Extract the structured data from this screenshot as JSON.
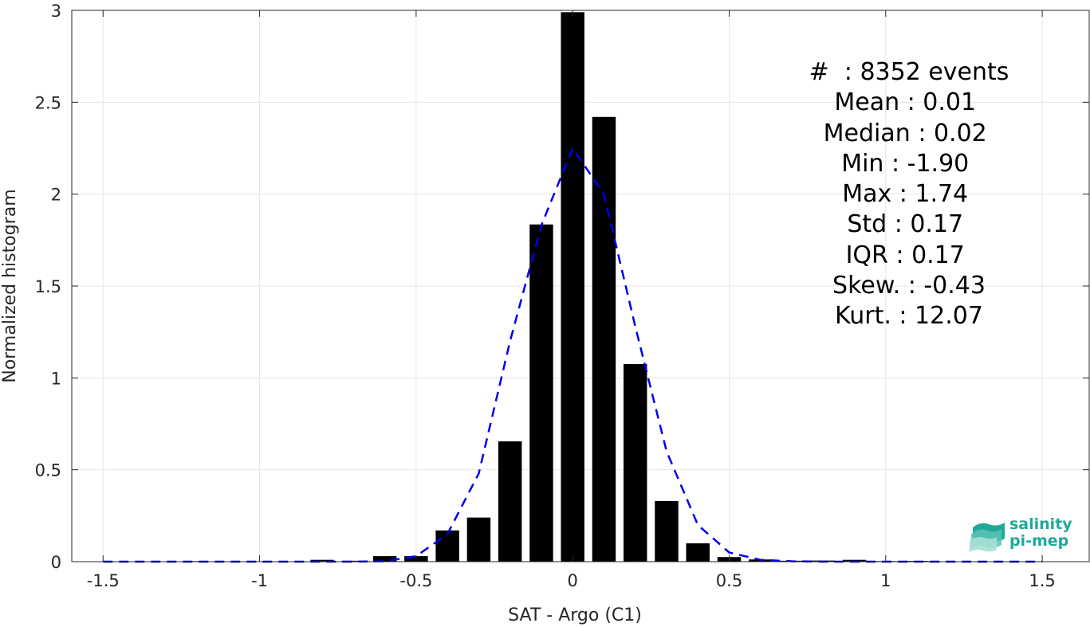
{
  "chart_data": {
    "type": "bar",
    "xlabel": "SAT - Argo (C1)",
    "ylabel": "Normalized histogram",
    "xlim": [
      -1.6,
      1.65
    ],
    "ylim": [
      0,
      3
    ],
    "xticks": [
      -1.5,
      -1,
      -0.5,
      0,
      0.5,
      1,
      1.5
    ],
    "xtick_labels": [
      "-1.5",
      "-1",
      "-0.5",
      "0",
      "0.5",
      "1",
      "1.5"
    ],
    "yticks": [
      0,
      0.5,
      1,
      1.5,
      2,
      2.5,
      3
    ],
    "ytick_labels": [
      "0",
      "0.5",
      "1",
      "1.5",
      "2",
      "2.5",
      "3"
    ],
    "grid": true,
    "bar_color": "#000000",
    "bars": {
      "x": [
        -1.5,
        -1.4,
        -1.3,
        -1.2,
        -1.1,
        -1.0,
        -0.9,
        -0.8,
        -0.7,
        -0.6,
        -0.5,
        -0.4,
        -0.3,
        -0.2,
        -0.1,
        0.0,
        0.1,
        0.2,
        0.3,
        0.4,
        0.5,
        0.6,
        0.7,
        0.8,
        0.9,
        1.0,
        1.1,
        1.2,
        1.3,
        1.4,
        1.5
      ],
      "values": [
        0.002,
        0.001,
        0.001,
        0.003,
        0.001,
        0.001,
        0.002,
        0.01,
        0.005,
        0.03,
        0.03,
        0.17,
        0.24,
        0.655,
        1.835,
        2.99,
        2.42,
        1.075,
        0.33,
        0.1,
        0.025,
        0.012,
        0.005,
        0.006,
        0.01,
        0.003,
        0.004,
        0.001,
        0.001,
        0.002,
        0.002
      ]
    },
    "fit_curve": {
      "style": "dashed",
      "color": "#0000ee",
      "x": [
        -1.5,
        -1.4,
        -1.3,
        -1.2,
        -1.1,
        -1.0,
        -0.9,
        -0.8,
        -0.7,
        -0.6,
        -0.5,
        -0.4,
        -0.3,
        -0.2,
        -0.1,
        0.0,
        0.1,
        0.2,
        0.3,
        0.4,
        0.5,
        0.6,
        0.7,
        0.8,
        0.9,
        1.0,
        1.1,
        1.2,
        1.3,
        1.4,
        1.5
      ],
      "y": [
        0.0,
        0.0,
        0.0,
        0.0,
        0.0,
        0.0,
        0.0,
        0.0,
        0.0,
        0.002,
        0.03,
        0.15,
        0.48,
        1.2,
        1.83,
        2.25,
        2.0,
        1.28,
        0.6,
        0.2,
        0.05,
        0.01,
        0.002,
        0.0,
        0.0,
        0.0,
        0.0,
        0.0,
        0.0,
        0.0,
        0.0
      ]
    }
  },
  "stats": [
    "#  : 8352 events",
    "Mean : 0.01 ",
    "Median : 0.02 ",
    "Min : -1.90 ",
    "Max : 1.74 ",
    "Std : 0.17 ",
    "IQR : 0.17 ",
    "Skew. : -0.43",
    "Kurt. : 12.07"
  ],
  "logo": {
    "line1": "salinity",
    "line2": "pi-mep",
    "color": "#1fa99a"
  }
}
